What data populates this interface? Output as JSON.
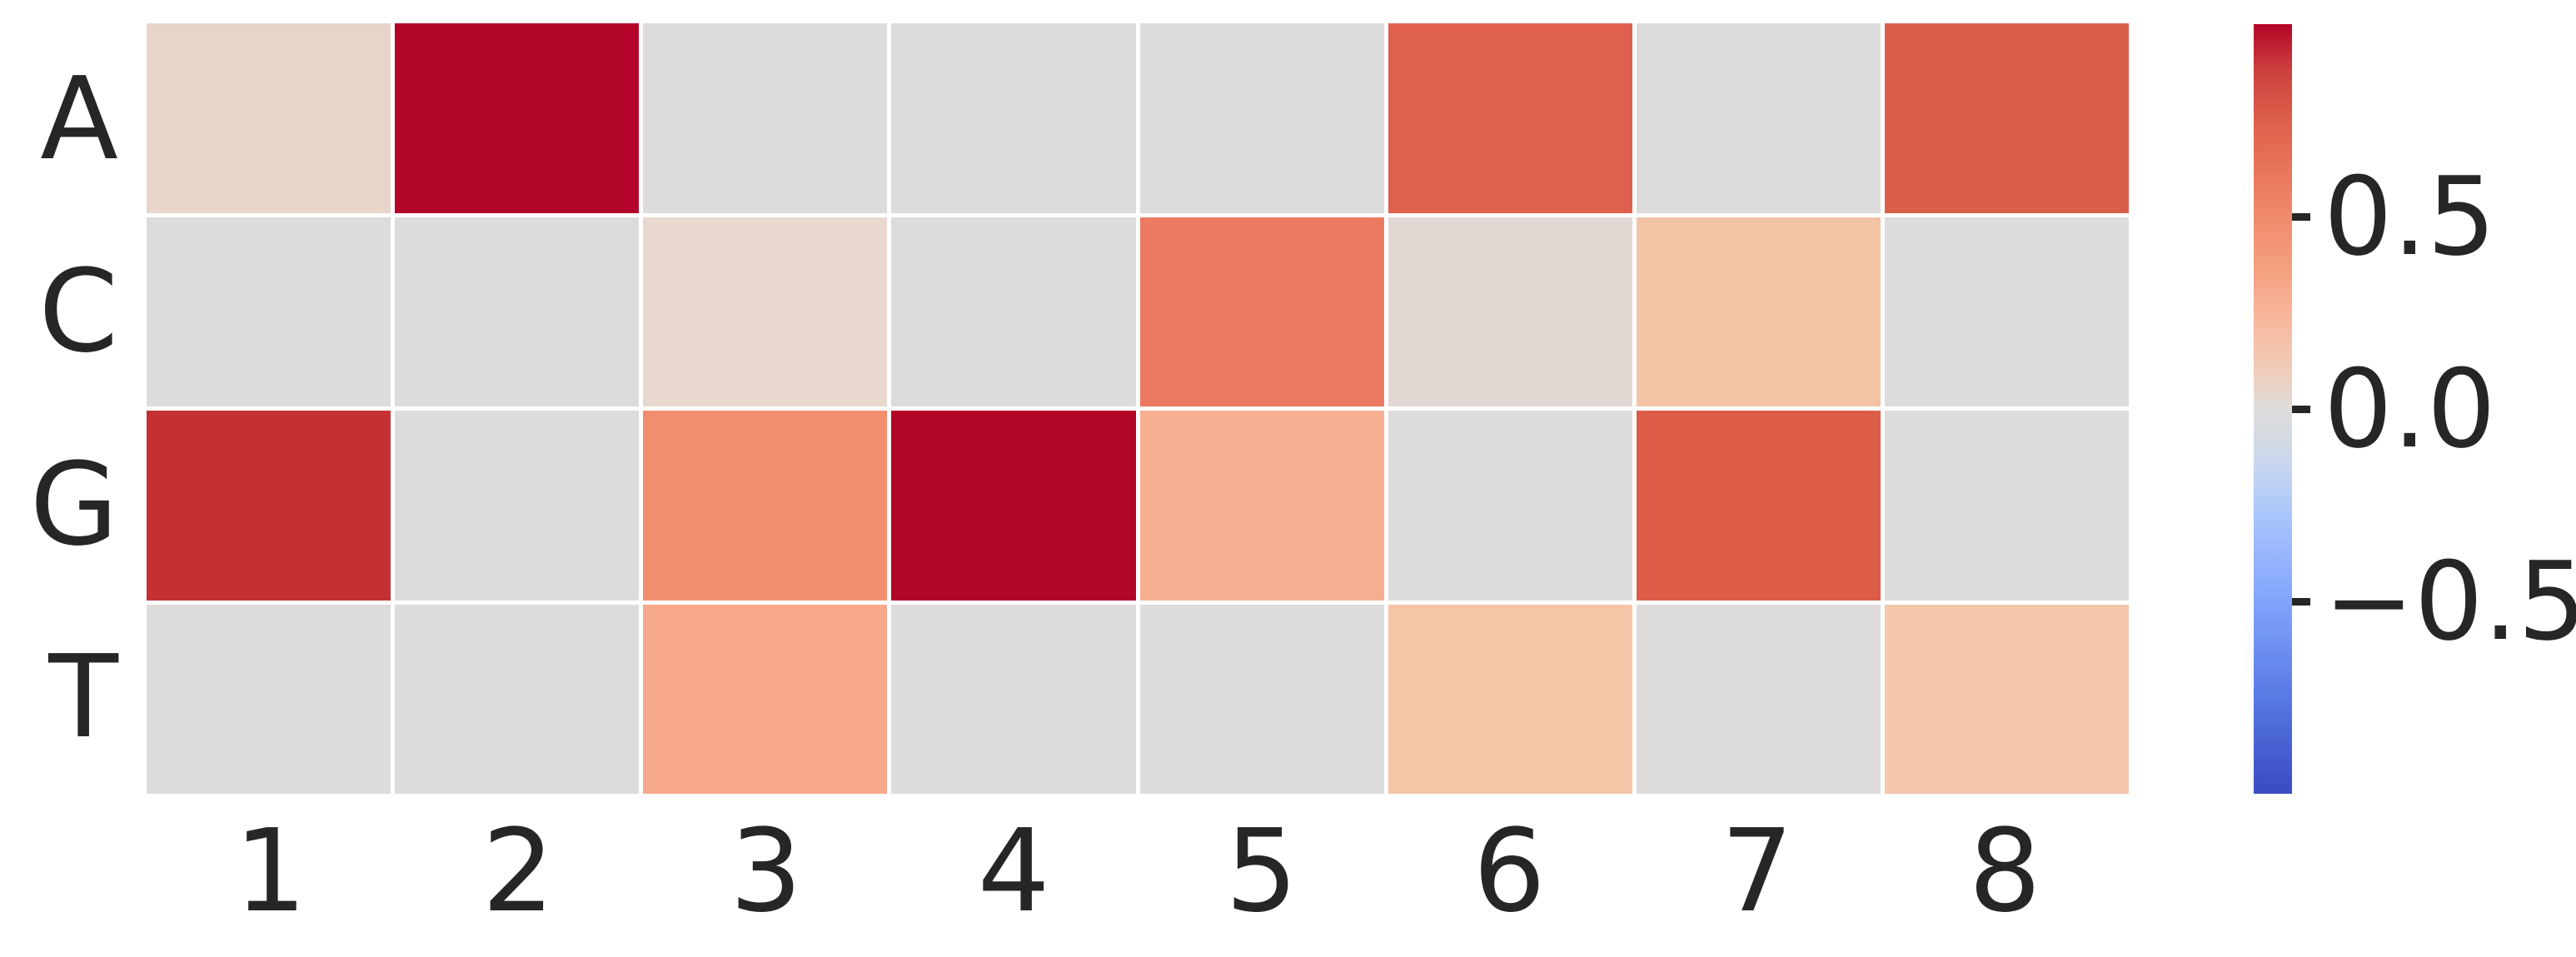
{
  "figure": {
    "background": "#ffffff",
    "text_color": "#262626"
  },
  "chart_data": {
    "type": "heatmap",
    "title": "",
    "xlabel": "",
    "ylabel": "",
    "rows": [
      "A",
      "C",
      "G",
      "T"
    ],
    "columns": [
      "1",
      "2",
      "3",
      "4",
      "5",
      "6",
      "7",
      "8"
    ],
    "values": [
      [
        0.15,
        1.0,
        0.0,
        0.0,
        0.0,
        0.8,
        0.0,
        0.8
      ],
      [
        0.0,
        0.0,
        0.12,
        0.0,
        0.65,
        0.06,
        0.3,
        0.0
      ],
      [
        0.9,
        0.0,
        0.55,
        1.0,
        0.4,
        0.0,
        0.75,
        0.0
      ],
      [
        0.0,
        0.0,
        0.45,
        0.0,
        0.0,
        0.28,
        0.0,
        0.27
      ]
    ],
    "cell_colors": [
      [
        "#e7d5c9",
        "#b20429",
        "#dddcdb",
        "#dddcdb",
        "#dddcdb",
        "#df604e",
        "#dddcdb",
        "#d95f4b"
      ],
      [
        "#dddcdb",
        "#dddcdb",
        "#e9d8cd",
        "#dddcdb",
        "#ec7962",
        "#e2d8d3",
        "#f3c3a5",
        "#dddcdb"
      ],
      [
        "#c43132",
        "#dddcdb",
        "#f28e70",
        "#b20629",
        "#f6b091",
        "#dddcdb",
        "#dc5c48",
        "#dddcdb"
      ],
      [
        "#dddcdb",
        "#dddcdb",
        "#f8a98a",
        "#dddcdb",
        "#dddcdb",
        "#f6c5a7",
        "#dddcdb",
        "#f5c6ac"
      ]
    ],
    "colormap": "coolwarm",
    "vmin": -1.0,
    "vmax": 1.0,
    "grid_line_color": "#ffffff",
    "zero_color": "#dddcdb",
    "legend_position": "right",
    "colorbar": {
      "tick_labels": [
        "0.5",
        "0.0",
        "−0.5"
      ],
      "tick_values": [
        0.5,
        0.0,
        -0.5
      ],
      "top_color": "#b40426",
      "mid_color": "#dddcdb",
      "bottom_color": "#3b4cc0",
      "gradient_stops": [
        {
          "pos": 0,
          "color": "#b40426"
        },
        {
          "pos": 6,
          "color": "#cc403e"
        },
        {
          "pos": 12,
          "color": "#dc5d4a"
        },
        {
          "pos": 18,
          "color": "#e77258"
        },
        {
          "pos": 25,
          "color": "#f08a6c"
        },
        {
          "pos": 32,
          "color": "#f5a081"
        },
        {
          "pos": 38,
          "color": "#f7b69b"
        },
        {
          "pos": 44,
          "color": "#f2cab5"
        },
        {
          "pos": 48,
          "color": "#e6d5ca"
        },
        {
          "pos": 50,
          "color": "#dddcdb"
        },
        {
          "pos": 54,
          "color": "#d3dae4"
        },
        {
          "pos": 58,
          "color": "#c5d5f0"
        },
        {
          "pos": 64,
          "color": "#a9c5fb"
        },
        {
          "pos": 72,
          "color": "#8dadfe"
        },
        {
          "pos": 80,
          "color": "#7193f3"
        },
        {
          "pos": 88,
          "color": "#5777e2"
        },
        {
          "pos": 94,
          "color": "#4760d1"
        },
        {
          "pos": 100,
          "color": "#3b4cc0"
        }
      ]
    }
  }
}
